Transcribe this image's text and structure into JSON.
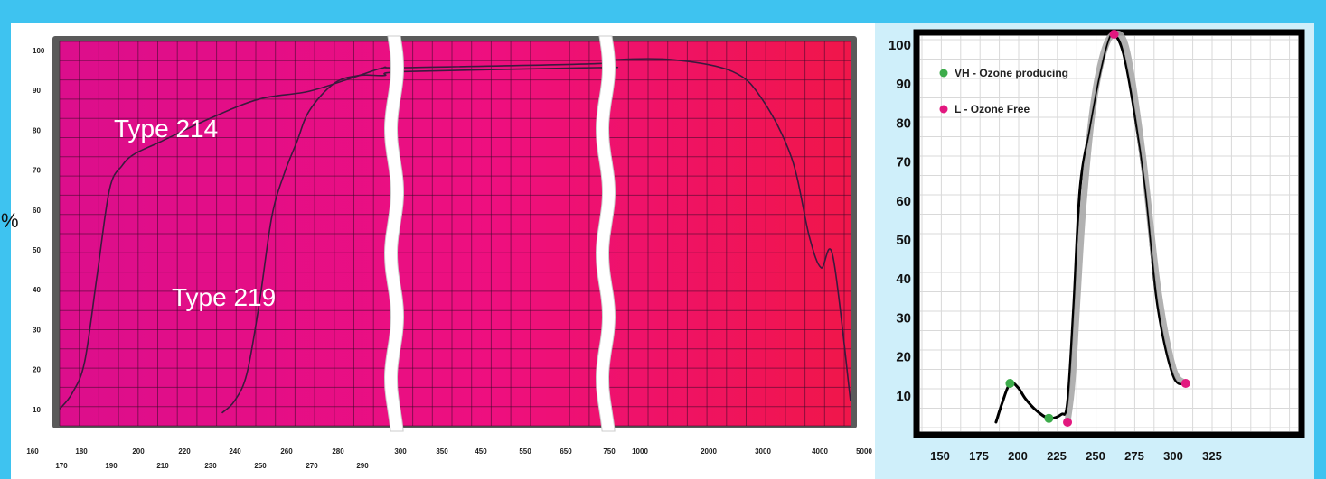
{
  "chart_data": [
    {
      "type": "line",
      "title": "",
      "ylabel": "%",
      "xlabel": "",
      "y_ticks": [
        "100",
        "90",
        "80",
        "70",
        "60",
        "50",
        "40",
        "30",
        "20",
        "10"
      ],
      "x_ticks_upper": [
        "160",
        "180",
        "200",
        "220",
        "240",
        "260",
        "280",
        "300",
        "350",
        "450",
        "550",
        "650",
        "750",
        "1000",
        "2000",
        "3000",
        "4000",
        "5000"
      ],
      "x_ticks_lower": [
        "170",
        "190",
        "210",
        "230",
        "250",
        "270",
        "290"
      ],
      "grid": true,
      "background": "#e0118a",
      "series": [
        {
          "name": "Type 214",
          "x": [
            160,
            165,
            170,
            175,
            180,
            185,
            190,
            200,
            220,
            240,
            260,
            280,
            290,
            300,
            750,
            1000,
            2000,
            3000,
            3500,
            4000,
            4300,
            4500,
            4700,
            5000
          ],
          "y": [
            6,
            10,
            18,
            40,
            62,
            68,
            71,
            74,
            80,
            85,
            87,
            91,
            93,
            93,
            94,
            95,
            95,
            92,
            85,
            70,
            50,
            42,
            45,
            8
          ]
        },
        {
          "name": "Type 219",
          "x": [
            225,
            230,
            235,
            240,
            245,
            250,
            255,
            260,
            270,
            280,
            290,
            300,
            750,
            1000
          ],
          "y": [
            5,
            8,
            15,
            33,
            55,
            66,
            74,
            82,
            89,
            91,
            91,
            92,
            93,
            93
          ]
        }
      ]
    },
    {
      "type": "line",
      "title": "",
      "y_ticks": [
        "100",
        "90",
        "80",
        "70",
        "60",
        "50",
        "40",
        "30",
        "20",
        "10"
      ],
      "x_ticks": [
        "150",
        "175",
        "200",
        "225",
        "250",
        "275",
        "300",
        "325"
      ],
      "ylim": [
        0,
        100
      ],
      "xlim": [
        140,
        350
      ],
      "grid": true,
      "legend": [
        {
          "name": "VH - Ozone producing",
          "color": "#3cab4a"
        },
        {
          "name": "L - Ozone Free",
          "color": "#e2187f"
        }
      ],
      "series": [
        {
          "name": "VH - Ozone producing",
          "color": "#000000",
          "x": [
            186,
            190,
            195,
            200,
            205,
            212,
            220,
            228,
            232,
            236,
            240,
            246,
            252,
            258,
            262,
            268,
            275,
            282,
            290,
            300,
            308
          ],
          "y": [
            0,
            5,
            10,
            9,
            6,
            3,
            1,
            2,
            5,
            30,
            60,
            75,
            88,
            98,
            100,
            95,
            80,
            60,
            30,
            12,
            10
          ],
          "points_x": [
            195,
            220
          ],
          "points_y": [
            10,
            1
          ]
        },
        {
          "name": "L - Ozone Free",
          "color": "#a8a8a8",
          "x": [
            232,
            235,
            238,
            242,
            248,
            255,
            262,
            270,
            280,
            290,
            300,
            308
          ],
          "y": [
            0,
            10,
            30,
            55,
            80,
            95,
            100,
            96,
            70,
            35,
            14,
            10
          ],
          "points_x": [
            232,
            262,
            308
          ],
          "points_y": [
            0,
            100,
            10
          ]
        }
      ]
    }
  ]
}
